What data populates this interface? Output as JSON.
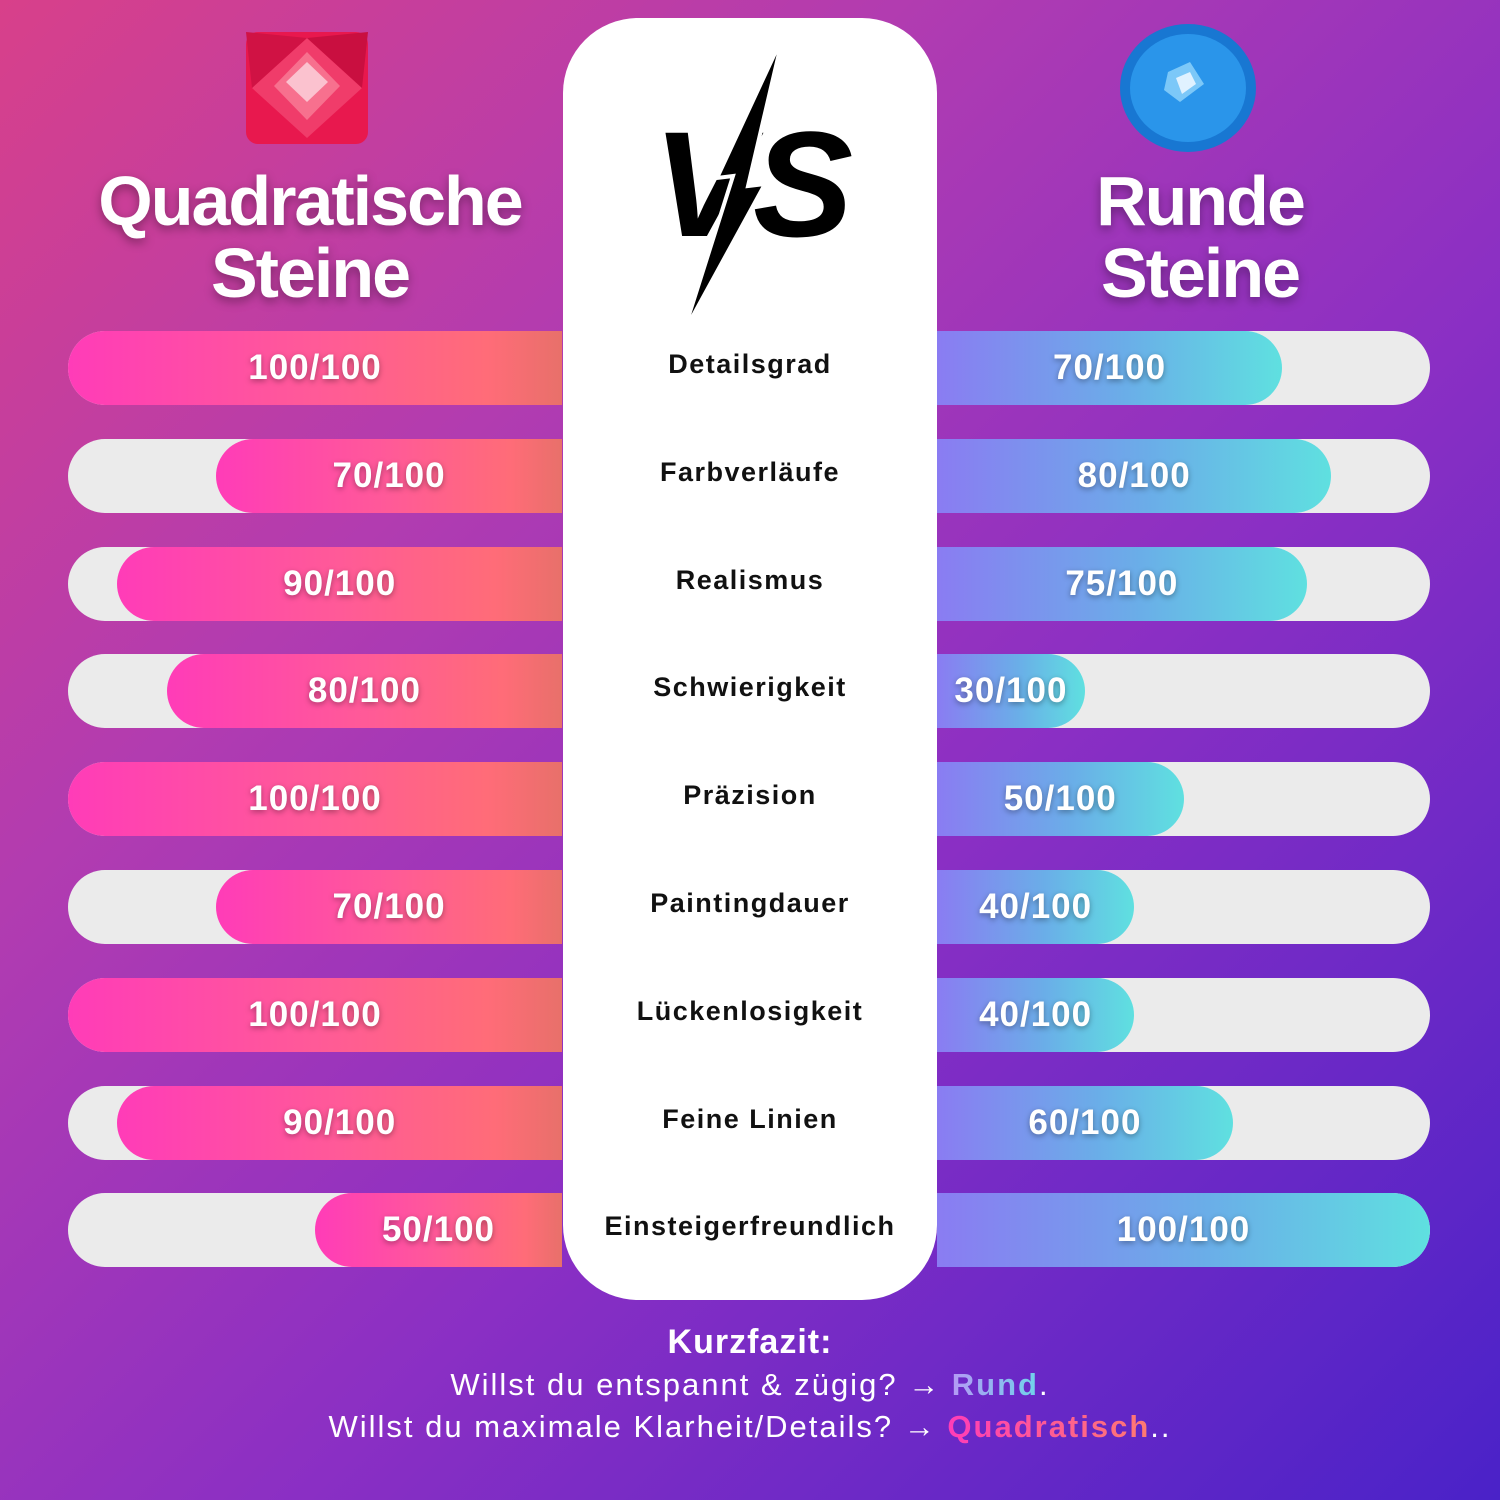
{
  "left_title": [
    "Quadratische",
    "Steine"
  ],
  "right_title": [
    "Runde",
    "Steine"
  ],
  "vs_label": "VS",
  "colors": {
    "left_fill_start": "#ff3cb8",
    "left_fill_end": "#e8706a",
    "right_fill_start": "#8a7cf2",
    "right_fill_end": "#5fe0e0",
    "track": "#ebebeb",
    "panel": "#ffffff"
  },
  "chart_data": {
    "type": "bar",
    "categories": [
      "Detailsgrad",
      "Farbverläufe",
      "Realismus",
      "Schwierigkeit",
      "Präzision",
      "Paintingdauer",
      "Lückenlosigkeit",
      "Feine Linien",
      "Einsteigerfreundlich"
    ],
    "max": 100,
    "series": [
      {
        "name": "Quadratische Steine",
        "values": [
          100,
          70,
          90,
          80,
          100,
          70,
          100,
          90,
          50
        ],
        "labels": [
          "100/100",
          "70/100",
          "90/100",
          "80/100",
          "100/100",
          "70/100",
          "100/100",
          "90/100",
          "50/100"
        ]
      },
      {
        "name": "Runde Steine",
        "values": [
          70,
          80,
          75,
          30,
          50,
          40,
          40,
          60,
          100
        ],
        "labels": [
          "70/100",
          "80/100",
          "75/100",
          "30/100",
          "50/100",
          "40/100",
          "40/100",
          "60/100",
          "100/100"
        ]
      }
    ]
  },
  "summary": {
    "title": "Kurzfazit:",
    "line1_text": "Willst du entspannt & zügig? → ",
    "line1_highlight": "Rund",
    "line1_end": ".",
    "line2_text": "Willst du maximale Klarheit/Details? → ",
    "line2_highlight": "Quadratisch",
    "line2_end": ".."
  }
}
